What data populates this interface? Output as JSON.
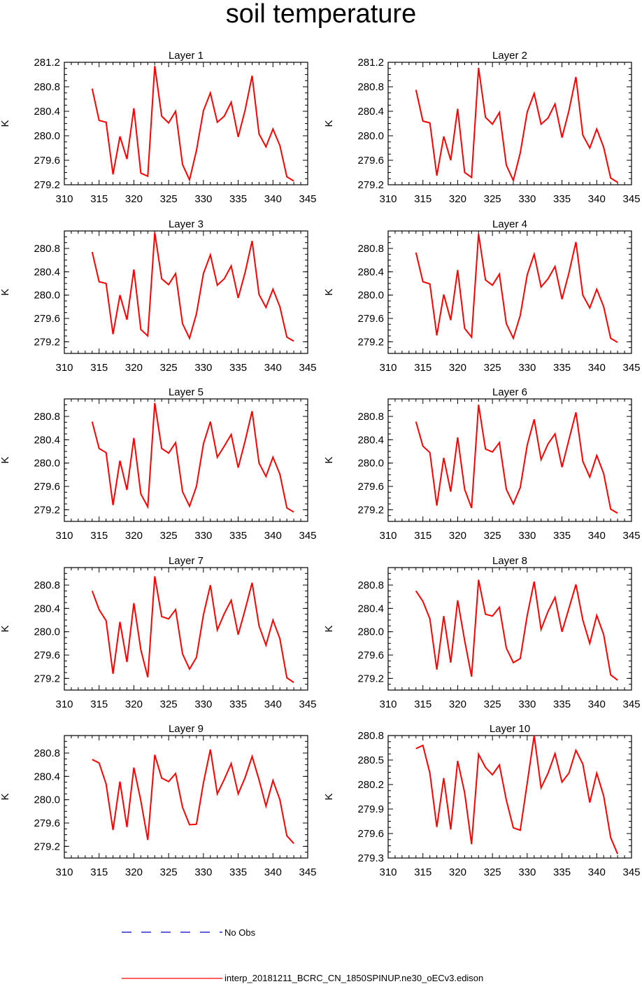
{
  "title": "soil temperature",
  "legend": {
    "no_obs_label": "No Obs",
    "no_obs_color": "#0000cc",
    "series_label": "interp_20181211_BCRC_CN_1850SPINUP.ne30_oECv3.edison",
    "series_color": "#ff0000"
  },
  "chart_data": [
    {
      "type": "line",
      "title": "Layer 1",
      "ylabel": "K",
      "xlim": [
        310,
        345
      ],
      "ylim": [
        279.2,
        281.2
      ],
      "xticks": [
        310,
        315,
        320,
        325,
        330,
        335,
        340,
        345
      ],
      "yticks": [
        279.2,
        279.6,
        280.0,
        280.4,
        280.8,
        281.2
      ],
      "ytick_labels": [
        "279.2",
        "279.6",
        "280.0",
        "280.4",
        "280.8",
        "281.2"
      ],
      "x": [
        314,
        315,
        316,
        317,
        318,
        319,
        320,
        321,
        322,
        323,
        324,
        325,
        326,
        327,
        328,
        329,
        330,
        331,
        332,
        333,
        334,
        335,
        336,
        337,
        338,
        339,
        340,
        341,
        342,
        343
      ],
      "values": [
        280.77,
        280.25,
        280.22,
        279.37,
        279.99,
        279.62,
        280.45,
        279.39,
        279.34,
        281.14,
        280.32,
        280.21,
        280.4,
        279.53,
        279.28,
        279.76,
        280.41,
        280.7,
        280.22,
        280.32,
        280.55,
        279.98,
        280.42,
        280.98,
        280.03,
        279.82,
        280.11,
        279.84,
        279.33,
        279.26
      ]
    },
    {
      "type": "line",
      "title": "Layer 2",
      "ylabel": "K",
      "xlim": [
        310,
        345
      ],
      "ylim": [
        279.2,
        281.2
      ],
      "xticks": [
        310,
        315,
        320,
        325,
        330,
        335,
        340,
        345
      ],
      "yticks": [
        279.2,
        279.6,
        280.0,
        280.4,
        280.8,
        281.2
      ],
      "ytick_labels": [
        "279.2",
        "279.6",
        "280.0",
        "280.4",
        "280.8",
        "281.2"
      ],
      "x": [
        314,
        315,
        316,
        317,
        318,
        319,
        320,
        321,
        322,
        323,
        324,
        325,
        326,
        327,
        328,
        329,
        330,
        331,
        332,
        333,
        334,
        335,
        336,
        337,
        338,
        339,
        340,
        341,
        342,
        343
      ],
      "values": [
        280.75,
        280.24,
        280.21,
        279.35,
        279.99,
        279.6,
        280.44,
        279.4,
        279.32,
        281.11,
        280.3,
        280.19,
        280.38,
        279.52,
        279.27,
        279.72,
        280.39,
        280.69,
        280.19,
        280.29,
        280.52,
        279.97,
        280.41,
        280.96,
        280.01,
        279.8,
        280.11,
        279.81,
        279.31,
        279.24
      ]
    },
    {
      "type": "line",
      "title": "Layer 3",
      "ylabel": "K",
      "xlim": [
        310,
        345
      ],
      "ylim": [
        279.0,
        281.1
      ],
      "xticks": [
        310,
        315,
        320,
        325,
        330,
        335,
        340,
        345
      ],
      "yticks": [
        279.2,
        279.6,
        280.0,
        280.4,
        280.8
      ],
      "ytick_labels": [
        "279.2",
        "279.6",
        "280.0",
        "280.4",
        "280.8"
      ],
      "x": [
        314,
        315,
        316,
        317,
        318,
        319,
        320,
        321,
        322,
        323,
        324,
        325,
        326,
        327,
        328,
        329,
        330,
        331,
        332,
        333,
        334,
        335,
        336,
        337,
        338,
        339,
        340,
        341,
        342,
        343
      ],
      "values": [
        280.74,
        280.23,
        280.2,
        279.33,
        280.0,
        279.58,
        280.44,
        279.41,
        279.3,
        281.07,
        280.28,
        280.18,
        280.37,
        279.51,
        279.26,
        279.68,
        280.37,
        280.69,
        280.17,
        280.28,
        280.5,
        279.95,
        280.39,
        280.93,
        280.01,
        279.79,
        280.1,
        279.8,
        279.28,
        279.21
      ]
    },
    {
      "type": "line",
      "title": "Layer 4",
      "ylabel": "K",
      "xlim": [
        310,
        345
      ],
      "ylim": [
        279.0,
        281.1
      ],
      "xticks": [
        310,
        315,
        320,
        325,
        330,
        335,
        340,
        345
      ],
      "yticks": [
        279.2,
        279.6,
        280.0,
        280.4,
        280.8
      ],
      "ytick_labels": [
        "279.2",
        "279.6",
        "280.0",
        "280.4",
        "280.8"
      ],
      "x": [
        314,
        315,
        316,
        317,
        318,
        319,
        320,
        321,
        322,
        323,
        324,
        325,
        326,
        327,
        328,
        329,
        330,
        331,
        332,
        333,
        334,
        335,
        336,
        337,
        338,
        339,
        340,
        341,
        342,
        343
      ],
      "values": [
        280.73,
        280.23,
        280.19,
        279.31,
        280.01,
        279.57,
        280.43,
        279.43,
        279.28,
        281.05,
        280.26,
        280.17,
        280.36,
        279.51,
        279.26,
        279.65,
        280.35,
        280.7,
        280.14,
        280.28,
        280.49,
        279.93,
        280.38,
        280.91,
        280.0,
        279.78,
        280.1,
        279.8,
        279.26,
        279.19
      ]
    },
    {
      "type": "line",
      "title": "Layer 5",
      "ylabel": "K",
      "xlim": [
        310,
        345
      ],
      "ylim": [
        279.0,
        281.1
      ],
      "xticks": [
        310,
        315,
        320,
        325,
        330,
        335,
        340,
        345
      ],
      "yticks": [
        279.2,
        279.6,
        280.0,
        280.4,
        280.8
      ],
      "ytick_labels": [
        "279.2",
        "279.6",
        "280.0",
        "280.4",
        "280.8"
      ],
      "x": [
        314,
        315,
        316,
        317,
        318,
        319,
        320,
        321,
        322,
        323,
        324,
        325,
        326,
        327,
        328,
        329,
        330,
        331,
        332,
        333,
        334,
        335,
        336,
        337,
        338,
        339,
        340,
        341,
        342,
        343
      ],
      "values": [
        280.71,
        280.25,
        280.18,
        279.28,
        280.04,
        279.54,
        280.43,
        279.47,
        279.25,
        281.03,
        280.25,
        280.17,
        280.35,
        279.51,
        279.26,
        279.6,
        280.33,
        280.71,
        280.1,
        280.29,
        280.49,
        279.92,
        280.38,
        280.89,
        280.0,
        279.77,
        280.1,
        279.81,
        279.23,
        279.16
      ]
    },
    {
      "type": "line",
      "title": "Layer 6",
      "ylabel": "K",
      "xlim": [
        310,
        345
      ],
      "ylim": [
        279.0,
        281.1
      ],
      "xticks": [
        310,
        315,
        320,
        325,
        330,
        335,
        340,
        345
      ],
      "yticks": [
        279.2,
        279.6,
        280.0,
        280.4,
        280.8
      ],
      "ytick_labels": [
        "279.2",
        "279.6",
        "280.0",
        "280.4",
        "280.8"
      ],
      "x": [
        314,
        315,
        316,
        317,
        318,
        319,
        320,
        321,
        322,
        323,
        324,
        325,
        326,
        327,
        328,
        329,
        330,
        331,
        332,
        333,
        334,
        335,
        336,
        337,
        338,
        339,
        340,
        341,
        342,
        343
      ],
      "values": [
        280.71,
        280.29,
        280.18,
        279.27,
        280.09,
        279.51,
        280.44,
        279.55,
        279.23,
        281.0,
        280.24,
        280.19,
        280.35,
        279.55,
        279.3,
        279.58,
        280.31,
        280.75,
        280.06,
        280.33,
        280.5,
        279.93,
        280.4,
        280.87,
        280.03,
        279.76,
        280.13,
        279.82,
        279.21,
        279.14
      ]
    },
    {
      "type": "line",
      "title": "Layer 7",
      "ylabel": "K",
      "xlim": [
        310,
        345
      ],
      "ylim": [
        279.0,
        281.1
      ],
      "xticks": [
        310,
        315,
        320,
        325,
        330,
        335,
        340,
        345
      ],
      "yticks": [
        279.2,
        279.6,
        280.0,
        280.4,
        280.8
      ],
      "ytick_labels": [
        "279.2",
        "279.6",
        "280.0",
        "280.4",
        "280.8"
      ],
      "x": [
        314,
        315,
        316,
        317,
        318,
        319,
        320,
        321,
        322,
        323,
        324,
        325,
        326,
        327,
        328,
        329,
        330,
        331,
        332,
        333,
        334,
        335,
        336,
        337,
        338,
        339,
        340,
        341,
        342,
        343
      ],
      "values": [
        280.7,
        280.38,
        280.19,
        279.28,
        280.17,
        279.48,
        280.49,
        279.69,
        279.22,
        280.95,
        280.26,
        280.22,
        280.38,
        279.62,
        279.36,
        279.56,
        280.29,
        280.8,
        280.03,
        280.31,
        280.54,
        279.95,
        280.38,
        280.84,
        280.1,
        279.77,
        280.2,
        279.88,
        279.21,
        279.13
      ]
    },
    {
      "type": "line",
      "title": "Layer 8",
      "ylabel": "K",
      "xlim": [
        310,
        345
      ],
      "ylim": [
        279.0,
        281.1
      ],
      "xticks": [
        310,
        315,
        320,
        325,
        330,
        335,
        340,
        345
      ],
      "yticks": [
        279.2,
        279.6,
        280.0,
        280.4,
        280.8
      ],
      "ytick_labels": [
        "279.2",
        "279.6",
        "280.0",
        "280.4",
        "280.8"
      ],
      "x": [
        314,
        315,
        316,
        317,
        318,
        319,
        320,
        321,
        322,
        323,
        324,
        325,
        326,
        327,
        328,
        329,
        330,
        331,
        332,
        333,
        334,
        335,
        336,
        337,
        338,
        339,
        340,
        341,
        342,
        343
      ],
      "values": [
        280.7,
        280.52,
        280.22,
        279.35,
        280.27,
        279.47,
        280.54,
        279.85,
        279.23,
        280.89,
        280.3,
        280.27,
        280.42,
        279.72,
        279.47,
        279.54,
        280.28,
        280.86,
        280.04,
        280.35,
        280.59,
        280.0,
        280.4,
        280.81,
        280.2,
        279.8,
        280.28,
        279.95,
        279.26,
        279.17
      ]
    },
    {
      "type": "line",
      "title": "Layer 9",
      "ylabel": "K",
      "xlim": [
        310,
        345
      ],
      "ylim": [
        279.0,
        281.1
      ],
      "xticks": [
        310,
        315,
        320,
        325,
        330,
        335,
        340,
        345
      ],
      "yticks": [
        279.2,
        279.6,
        280.0,
        280.4,
        280.8
      ],
      "ytick_labels": [
        "279.2",
        "279.6",
        "280.0",
        "280.4",
        "280.8"
      ],
      "x": [
        314,
        315,
        316,
        317,
        318,
        319,
        320,
        321,
        322,
        323,
        324,
        325,
        326,
        327,
        328,
        329,
        330,
        331,
        332,
        333,
        334,
        335,
        336,
        337,
        338,
        339,
        340,
        341,
        342,
        343
      ],
      "values": [
        280.69,
        280.63,
        280.27,
        279.48,
        280.31,
        279.53,
        280.55,
        279.98,
        279.31,
        280.77,
        280.37,
        280.31,
        280.45,
        279.87,
        279.57,
        279.58,
        280.29,
        280.86,
        280.1,
        280.35,
        280.62,
        280.1,
        280.38,
        280.74,
        280.34,
        279.89,
        280.33,
        280.0,
        279.38,
        279.25
      ]
    },
    {
      "type": "line",
      "title": "Layer 10",
      "ylabel": "K",
      "xlim": [
        310,
        345
      ],
      "ylim": [
        279.3,
        280.8
      ],
      "xticks": [
        310,
        315,
        320,
        325,
        330,
        335,
        340,
        345
      ],
      "yticks": [
        279.3,
        279.6,
        279.9,
        280.2,
        280.5,
        280.8
      ],
      "ytick_labels": [
        "279.3",
        "279.6",
        "279.9",
        "280.2",
        "280.5",
        "280.8"
      ],
      "x": [
        314,
        315,
        316,
        317,
        318,
        319,
        320,
        321,
        322,
        323,
        324,
        325,
        326,
        327,
        328,
        329,
        330,
        331,
        332,
        333,
        334,
        335,
        336,
        337,
        338,
        339,
        340,
        341,
        342,
        343
      ],
      "values": [
        280.64,
        280.68,
        280.34,
        279.68,
        280.28,
        279.65,
        280.49,
        280.1,
        279.47,
        280.57,
        280.41,
        280.32,
        280.44,
        280.01,
        279.67,
        279.64,
        280.22,
        280.8,
        280.16,
        280.34,
        280.58,
        280.23,
        280.34,
        280.62,
        280.45,
        279.98,
        280.34,
        280.06,
        279.55,
        279.35
      ]
    }
  ]
}
